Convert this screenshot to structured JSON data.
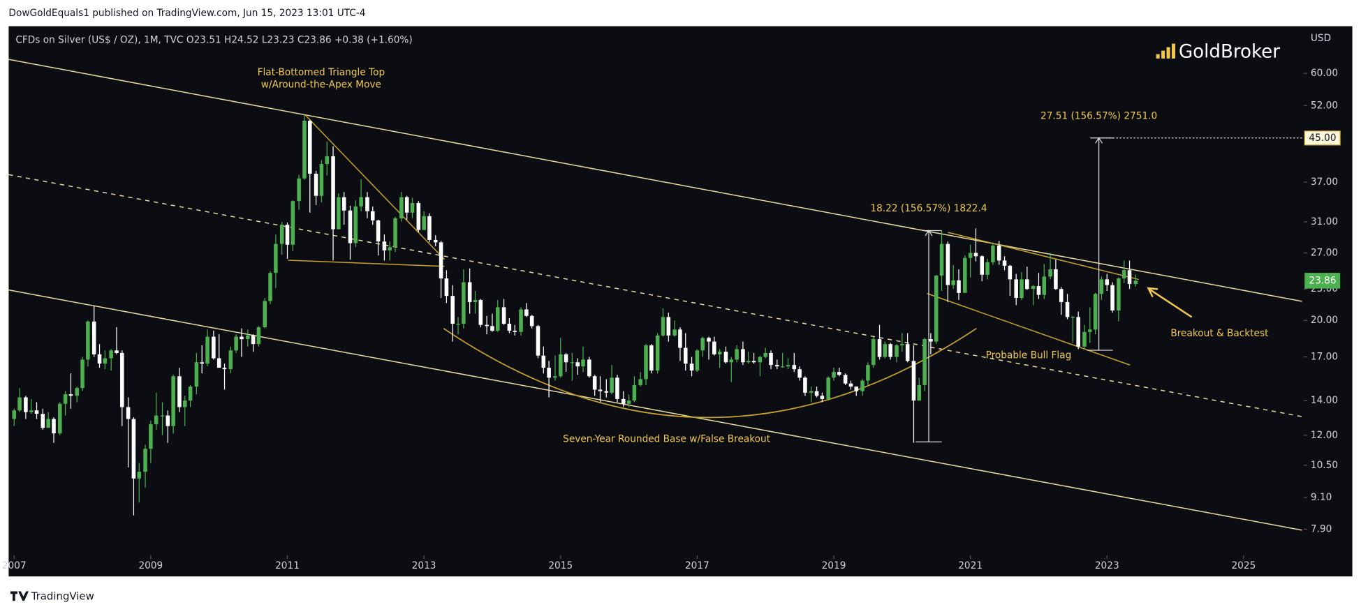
{
  "header": {
    "publisher": "DowGoldEquals1 published on TradingView.com, Jun 15, 2023 13:01 UTC-4",
    "footer": "TradingView"
  },
  "chart_data": {
    "type": "candlestick",
    "legend_text": "CFDs on Silver (US$ / OZ), 1M, TVC  O23.51  H24.52  L23.23  C23.86  +0.38 (+1.60%)",
    "currency": "USD",
    "logo": "GoldBroker",
    "log_scale": true,
    "up_color": "#4caf50",
    "down_color": "#ffffff",
    "xlim": [
      2006.92,
      2025.88
    ],
    "xticks": [
      2007,
      2009,
      2011,
      2013,
      2015,
      2017,
      2019,
      2021,
      2023,
      2025
    ],
    "ylim": [
      7.03,
      74
    ],
    "yticks": [
      {
        "value": 60,
        "label": "60.00"
      },
      {
        "value": 52,
        "label": "52.00"
      },
      {
        "value": 37,
        "label": "37.00"
      },
      {
        "value": 31,
        "label": "31.00"
      },
      {
        "value": 27,
        "label": "27.00"
      },
      {
        "value": 23,
        "label": "23.00"
      },
      {
        "value": 20,
        "label": "20.00"
      },
      {
        "value": 17,
        "label": "17.00"
      },
      {
        "value": 14,
        "label": "14.00"
      },
      {
        "value": 12,
        "label": "12.00"
      },
      {
        "value": 10.5,
        "label": "10.50"
      },
      {
        "value": 9.1,
        "label": "9.10"
      },
      {
        "value": 7.9,
        "label": "7.90"
      }
    ],
    "last_price": {
      "value": 23.86,
      "label": "23.86"
    },
    "target": {
      "value": 45,
      "label": "45.00"
    },
    "annotations": [
      "Flat-Bottomed Triangle Top",
      "w/Around-the-Apex Move",
      "27.51 (156.57%) 2751.0",
      "18.22 (156.57%) 1822.4",
      "Breakout & Backtest",
      "Probable Bull Flag",
      "Seven-Year Rounded Base w/False Breakout"
    ],
    "x": [
      2007,
      2007.08,
      2007.17,
      2007.25,
      2007.33,
      2007.42,
      2007.5,
      2007.58,
      2007.67,
      2007.75,
      2007.83,
      2007.92,
      2008,
      2008.08,
      2008.17,
      2008.25,
      2008.33,
      2008.42,
      2008.5,
      2008.58,
      2008.67,
      2008.75,
      2008.83,
      2008.92,
      2009,
      2009.08,
      2009.17,
      2009.25,
      2009.33,
      2009.42,
      2009.5,
      2009.58,
      2009.67,
      2009.75,
      2009.83,
      2009.92,
      2010,
      2010.08,
      2010.17,
      2010.25,
      2010.33,
      2010.42,
      2010.5,
      2010.58,
      2010.67,
      2010.75,
      2010.83,
      2010.92,
      2011,
      2011.08,
      2011.17,
      2011.25,
      2011.33,
      2011.42,
      2011.5,
      2011.58,
      2011.67,
      2011.75,
      2011.83,
      2011.92,
      2012,
      2012.08,
      2012.17,
      2012.25,
      2012.33,
      2012.42,
      2012.5,
      2012.58,
      2012.67,
      2012.75,
      2012.83,
      2012.92,
      2013,
      2013.08,
      2013.17,
      2013.25,
      2013.33,
      2013.42,
      2013.5,
      2013.58,
      2013.67,
      2013.75,
      2013.83,
      2013.92,
      2014,
      2014.08,
      2014.17,
      2014.25,
      2014.33,
      2014.42,
      2014.5,
      2014.58,
      2014.67,
      2014.75,
      2014.83,
      2014.92,
      2015,
      2015.08,
      2015.17,
      2015.25,
      2015.33,
      2015.42,
      2015.5,
      2015.58,
      2015.67,
      2015.75,
      2015.83,
      2015.92,
      2016,
      2016.08,
      2016.17,
      2016.25,
      2016.33,
      2016.42,
      2016.5,
      2016.58,
      2016.67,
      2016.75,
      2016.83,
      2016.92,
      2017,
      2017.08,
      2017.17,
      2017.25,
      2017.33,
      2017.42,
      2017.5,
      2017.58,
      2017.67,
      2017.75,
      2017.83,
      2017.92,
      2018,
      2018.08,
      2018.17,
      2018.25,
      2018.33,
      2018.42,
      2018.5,
      2018.58,
      2018.67,
      2018.75,
      2018.83,
      2018.92,
      2019,
      2019.08,
      2019.17,
      2019.25,
      2019.33,
      2019.42,
      2019.5,
      2019.58,
      2019.67,
      2019.75,
      2019.83,
      2019.92,
      2020,
      2020.08,
      2020.17,
      2020.25,
      2020.33,
      2020.42,
      2020.5,
      2020.58,
      2020.67,
      2020.75,
      2020.83,
      2020.92,
      2021,
      2021.08,
      2021.17,
      2021.25,
      2021.33,
      2021.42,
      2021.5,
      2021.58,
      2021.67,
      2021.75,
      2021.83,
      2021.92,
      2022,
      2022.08,
      2022.17,
      2022.25,
      2022.33,
      2022.42,
      2022.5,
      2022.58,
      2022.67,
      2022.75,
      2022.83,
      2022.92,
      2023,
      2023.08,
      2023.17,
      2023.25,
      2023.33,
      2023.42
    ],
    "ohlc": [
      [
        12.9,
        13.5,
        12.5,
        13.4
      ],
      [
        13.4,
        14.8,
        13.3,
        14.2
      ],
      [
        14.2,
        14.3,
        12.9,
        13.3
      ],
      [
        13.3,
        14.1,
        13.2,
        13.4
      ],
      [
        13.4,
        13.9,
        12.9,
        13.2
      ],
      [
        13.2,
        13.5,
        12.3,
        12.4
      ],
      [
        12.4,
        13.3,
        12.4,
        12.9
      ],
      [
        12.9,
        13.0,
        11.6,
        12.1
      ],
      [
        12.1,
        13.9,
        12.0,
        13.8
      ],
      [
        13.8,
        14.6,
        13.1,
        14.4
      ],
      [
        14.4,
        15.8,
        13.5,
        14.3
      ],
      [
        14.3,
        14.9,
        13.9,
        14.8
      ],
      [
        14.8,
        17.0,
        14.6,
        16.8
      ],
      [
        16.8,
        20.0,
        16.3,
        19.9
      ],
      [
        19.9,
        21.3,
        17.0,
        17.2
      ],
      [
        17.2,
        18.0,
        16.2,
        16.5
      ],
      [
        16.5,
        17.5,
        16.1,
        16.9
      ],
      [
        16.9,
        17.6,
        16.0,
        17.5
      ],
      [
        17.5,
        19.4,
        17.2,
        17.3
      ],
      [
        17.3,
        17.5,
        12.5,
        13.6
      ],
      [
        13.6,
        14.2,
        10.4,
        12.9
      ],
      [
        12.9,
        13.0,
        8.4,
        9.9
      ],
      [
        9.9,
        10.6,
        8.9,
        10.2
      ],
      [
        10.2,
        11.5,
        9.5,
        11.3
      ],
      [
        11.3,
        12.8,
        10.6,
        12.6
      ],
      [
        12.6,
        14.5,
        12.3,
        13.1
      ],
      [
        13.1,
        13.9,
        12.0,
        13.1
      ],
      [
        13.1,
        13.4,
        11.6,
        12.5
      ],
      [
        12.5,
        15.7,
        12.1,
        15.6
      ],
      [
        15.6,
        16.2,
        13.3,
        13.6
      ],
      [
        13.6,
        14.3,
        12.5,
        14.0
      ],
      [
        14.0,
        15.0,
        13.6,
        14.9
      ],
      [
        14.9,
        17.3,
        14.4,
        16.6
      ],
      [
        16.6,
        17.9,
        15.8,
        16.5
      ],
      [
        16.5,
        19.2,
        16.3,
        18.6
      ],
      [
        18.6,
        19.1,
        16.8,
        16.9
      ],
      [
        16.9,
        18.8,
        16.2,
        16.2
      ],
      [
        16.2,
        16.5,
        14.7,
        16.1
      ],
      [
        16.1,
        17.8,
        15.8,
        17.5
      ],
      [
        17.5,
        18.8,
        17.3,
        18.6
      ],
      [
        18.6,
        19.3,
        17.0,
        18.4
      ],
      [
        18.4,
        19.2,
        17.8,
        18.7
      ],
      [
        18.7,
        18.8,
        17.4,
        18.0
      ],
      [
        18.0,
        19.5,
        17.8,
        19.4
      ],
      [
        19.4,
        22.1,
        19.3,
        21.8
      ],
      [
        21.8,
        24.9,
        21.5,
        24.7
      ],
      [
        24.7,
        29.3,
        23.1,
        28.1
      ],
      [
        28.1,
        31.0,
        26.8,
        30.6
      ],
      [
        30.6,
        30.9,
        26.3,
        28.0
      ],
      [
        28.0,
        34.1,
        27.2,
        34.0
      ],
      [
        34.0,
        38.2,
        32.7,
        37.6
      ],
      [
        37.6,
        49.8,
        37.4,
        48.6
      ],
      [
        48.6,
        48.8,
        32.3,
        38.4
      ],
      [
        38.4,
        38.9,
        33.4,
        34.8
      ],
      [
        34.8,
        40.8,
        33.8,
        40.1
      ],
      [
        40.1,
        44.3,
        38.1,
        41.5
      ],
      [
        41.5,
        43.4,
        26.1,
        30.0
      ],
      [
        30.0,
        35.2,
        30.0,
        34.6
      ],
      [
        34.6,
        35.4,
        30.6,
        32.6
      ],
      [
        32.6,
        33.3,
        26.2,
        28.2
      ],
      [
        28.2,
        34.1,
        27.7,
        33.2
      ],
      [
        33.2,
        37.5,
        32.5,
        34.6
      ],
      [
        34.6,
        35.4,
        31.5,
        32.5
      ],
      [
        32.5,
        33.2,
        30.6,
        31.2
      ],
      [
        31.2,
        31.3,
        26.7,
        28.4
      ],
      [
        28.4,
        29.3,
        26.1,
        27.3
      ],
      [
        27.3,
        28.4,
        26.1,
        27.7
      ],
      [
        27.7,
        31.7,
        27.1,
        31.5
      ],
      [
        31.5,
        35.4,
        31.0,
        34.6
      ],
      [
        34.6,
        34.8,
        31.3,
        32.3
      ],
      [
        32.3,
        34.5,
        31.5,
        33.7
      ],
      [
        33.7,
        34.0,
        29.6,
        29.9
      ],
      [
        29.9,
        32.5,
        29.9,
        31.8
      ],
      [
        31.8,
        32.2,
        28.3,
        28.6
      ],
      [
        28.6,
        29.2,
        27.8,
        28.3
      ],
      [
        28.3,
        28.5,
        22.1,
        24.1
      ],
      [
        24.1,
        25.0,
        21.6,
        22.3
      ],
      [
        22.3,
        23.4,
        18.2,
        19.7
      ],
      [
        19.7,
        20.3,
        18.8,
        19.7
      ],
      [
        19.7,
        25.1,
        19.3,
        23.7
      ],
      [
        23.7,
        25.2,
        20.6,
        21.7
      ],
      [
        21.7,
        22.8,
        20.6,
        21.9
      ],
      [
        21.9,
        22.0,
        19.4,
        19.6
      ],
      [
        19.6,
        20.4,
        18.8,
        19.5
      ],
      [
        19.5,
        20.6,
        19.0,
        19.1
      ],
      [
        19.1,
        21.9,
        19.0,
        21.2
      ],
      [
        21.2,
        22.0,
        19.6,
        19.7
      ],
      [
        19.7,
        20.2,
        18.9,
        19.1
      ],
      [
        19.1,
        19.6,
        18.7,
        19.0
      ],
      [
        19.0,
        21.2,
        18.7,
        21.0
      ],
      [
        21.0,
        21.6,
        20.3,
        20.4
      ],
      [
        20.4,
        20.5,
        19.3,
        19.5
      ],
      [
        19.5,
        19.6,
        16.9,
        17.1
      ],
      [
        17.1,
        17.8,
        15.8,
        16.2
      ],
      [
        16.2,
        16.7,
        14.2,
        15.5
      ],
      [
        15.5,
        17.1,
        15.3,
        15.6
      ],
      [
        15.6,
        18.5,
        15.5,
        17.2
      ],
      [
        17.2,
        17.3,
        15.9,
        16.6
      ],
      [
        16.6,
        17.3,
        15.3,
        16.6
      ],
      [
        16.6,
        16.9,
        15.7,
        16.3
      ],
      [
        16.3,
        17.8,
        15.9,
        16.8
      ],
      [
        16.8,
        17.0,
        15.5,
        15.6
      ],
      [
        15.6,
        15.7,
        14.3,
        14.7
      ],
      [
        14.7,
        15.6,
        13.9,
        14.6
      ],
      [
        14.6,
        15.4,
        14.2,
        14.5
      ],
      [
        14.5,
        16.4,
        14.4,
        15.5
      ],
      [
        15.5,
        15.7,
        13.9,
        14.1
      ],
      [
        14.1,
        14.6,
        13.6,
        13.8
      ],
      [
        13.8,
        14.4,
        13.6,
        14.0
      ],
      [
        14.0,
        15.6,
        13.9,
        15.0
      ],
      [
        15.0,
        15.9,
        14.9,
        15.4
      ],
      [
        15.4,
        18.0,
        15.0,
        17.9
      ],
      [
        17.9,
        18.0,
        15.8,
        16.0
      ],
      [
        16.0,
        18.9,
        15.8,
        18.7
      ],
      [
        18.7,
        21.1,
        18.6,
        20.3
      ],
      [
        20.3,
        20.7,
        18.2,
        18.7
      ],
      [
        18.7,
        20.0,
        18.6,
        19.2
      ],
      [
        19.2,
        19.4,
        16.7,
        17.7
      ],
      [
        17.7,
        18.9,
        16.0,
        16.5
      ],
      [
        16.5,
        17.0,
        15.6,
        16.0
      ],
      [
        16.0,
        17.6,
        15.9,
        17.5
      ],
      [
        17.5,
        18.6,
        17.0,
        18.5
      ],
      [
        18.5,
        18.6,
        16.8,
        18.2
      ],
      [
        18.2,
        18.6,
        17.1,
        17.2
      ],
      [
        17.2,
        17.6,
        16.2,
        17.4
      ],
      [
        17.4,
        17.8,
        16.5,
        16.6
      ],
      [
        16.6,
        17.0,
        15.2,
        16.8
      ],
      [
        16.8,
        17.9,
        16.6,
        17.6
      ],
      [
        17.6,
        18.2,
        16.4,
        16.6
      ],
      [
        16.6,
        17.4,
        16.5,
        16.7
      ],
      [
        16.7,
        17.3,
        16.5,
        16.6
      ],
      [
        16.6,
        17.1,
        15.6,
        17.0
      ],
      [
        17.0,
        17.7,
        16.9,
        17.3
      ],
      [
        17.3,
        17.5,
        16.1,
        16.4
      ],
      [
        16.4,
        16.8,
        16.1,
        16.3
      ],
      [
        16.3,
        17.3,
        16.2,
        16.3
      ],
      [
        16.3,
        16.9,
        16.1,
        16.4
      ],
      [
        16.4,
        17.3,
        15.9,
        16.1
      ],
      [
        16.1,
        16.3,
        15.3,
        15.5
      ],
      [
        15.5,
        15.6,
        14.3,
        14.5
      ],
      [
        14.5,
        14.9,
        13.9,
        14.6
      ],
      [
        14.6,
        14.9,
        14.2,
        14.3
      ],
      [
        14.3,
        14.5,
        13.9,
        14.1
      ],
      [
        14.1,
        15.6,
        14.0,
        15.5
      ],
      [
        15.5,
        16.2,
        15.3,
        15.9
      ],
      [
        15.9,
        16.2,
        15.6,
        15.7
      ],
      [
        15.7,
        15.8,
        15.0,
        15.1
      ],
      [
        15.1,
        15.3,
        14.7,
        14.9
      ],
      [
        14.9,
        14.9,
        14.3,
        14.6
      ],
      [
        14.6,
        15.4,
        14.3,
        15.3
      ],
      [
        15.3,
        16.6,
        15.0,
        16.4
      ],
      [
        16.4,
        18.6,
        16.2,
        18.4
      ],
      [
        18.4,
        19.6,
        16.8,
        17.0
      ],
      [
        17.0,
        18.2,
        16.9,
        18.0
      ],
      [
        18.0,
        18.1,
        16.8,
        17.0
      ],
      [
        17.0,
        18.0,
        16.6,
        17.9
      ],
      [
        17.9,
        18.9,
        17.4,
        18.0
      ],
      [
        18.0,
        18.9,
        16.6,
        16.7
      ],
      [
        16.7,
        17.9,
        11.6,
        14.0
      ],
      [
        14.0,
        15.5,
        14.0,
        15.0
      ],
      [
        15.0,
        18.5,
        14.6,
        18.4
      ],
      [
        18.4,
        18.9,
        17.2,
        18.2
      ],
      [
        18.2,
        24.5,
        18.0,
        24.4
      ],
      [
        24.4,
        29.8,
        22.8,
        28.1
      ],
      [
        28.1,
        28.4,
        21.7,
        23.4
      ],
      [
        23.4,
        25.6,
        23.0,
        23.9
      ],
      [
        23.9,
        25.1,
        21.9,
        22.6
      ],
      [
        22.6,
        26.7,
        22.6,
        26.4
      ],
      [
        26.4,
        28.0,
        24.2,
        27.0
      ],
      [
        27.0,
        30.1,
        26.0,
        26.6
      ],
      [
        26.6,
        26.7,
        23.8,
        24.5
      ],
      [
        24.5,
        26.3,
        24.0,
        25.9
      ],
      [
        25.9,
        28.3,
        25.6,
        27.9
      ],
      [
        27.9,
        28.5,
        25.6,
        26.1
      ],
      [
        26.1,
        26.6,
        25.0,
        25.5
      ],
      [
        25.5,
        25.6,
        22.3,
        24.0
      ],
      [
        24.0,
        24.6,
        21.4,
        22.1
      ],
      [
        22.1,
        24.8,
        21.9,
        24.0
      ],
      [
        24.0,
        25.4,
        22.9,
        23.0
      ],
      [
        23.0,
        23.4,
        21.4,
        23.3
      ],
      [
        23.3,
        24.7,
        22.0,
        22.4
      ],
      [
        22.4,
        25.7,
        22.0,
        24.3
      ],
      [
        24.3,
        27.0,
        24.0,
        25.1
      ],
      [
        25.1,
        26.2,
        22.9,
        23.0
      ],
      [
        23.0,
        23.2,
        20.5,
        21.7
      ],
      [
        21.7,
        22.5,
        20.1,
        20.3
      ],
      [
        20.3,
        20.4,
        18.1,
        20.3
      ],
      [
        20.3,
        20.8,
        17.6,
        17.8
      ],
      [
        17.8,
        19.6,
        17.6,
        19.0
      ],
      [
        19.0,
        21.2,
        18.1,
        19.2
      ],
      [
        19.2,
        22.6,
        18.8,
        22.5
      ],
      [
        22.5,
        24.3,
        21.9,
        24.0
      ],
      [
        24.0,
        24.6,
        22.8,
        23.4
      ],
      [
        23.4,
        23.7,
        20.7,
        20.9
      ],
      [
        20.9,
        24.2,
        19.9,
        24.1
      ],
      [
        24.1,
        26.1,
        23.6,
        25.0
      ],
      [
        25.0,
        26.1,
        23.0,
        23.51
      ],
      [
        23.51,
        24.52,
        23.23,
        23.86
      ]
    ]
  }
}
